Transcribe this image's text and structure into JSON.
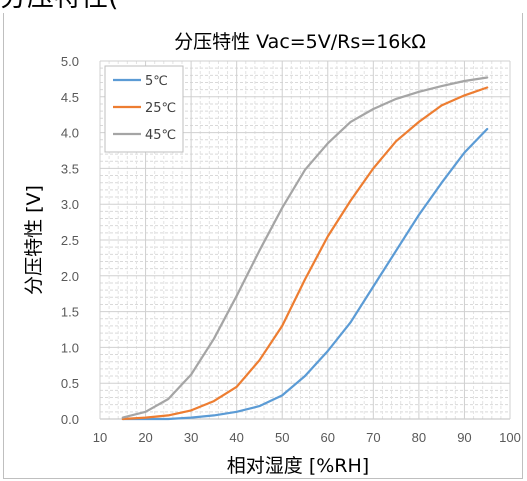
{
  "page_heading": "分压特性(",
  "chart_data": {
    "type": "line",
    "title": "分压特性  Vac=5V/Rs=16kΩ",
    "xlabel": "相对湿度 [%RH]",
    "ylabel": "分压特性 [V]",
    "xlim": [
      10,
      100
    ],
    "ylim": [
      0,
      5
    ],
    "x_ticks": [
      10,
      20,
      30,
      40,
      50,
      60,
      70,
      80,
      90,
      100
    ],
    "y_ticks": [
      "0.0",
      "0.5",
      "1.0",
      "1.5",
      "2.0",
      "2.5",
      "3.0",
      "3.5",
      "4.0",
      "4.5",
      "5.0"
    ],
    "grid": true,
    "legend_position": "top-left",
    "x": [
      15,
      20,
      25,
      30,
      35,
      40,
      45,
      50,
      55,
      60,
      65,
      70,
      75,
      80,
      85,
      90,
      95
    ],
    "series": [
      {
        "name": "5℃",
        "color": "#5b9bd5",
        "values": [
          0.0,
          0.0,
          0.0,
          0.02,
          0.05,
          0.1,
          0.18,
          0.33,
          0.6,
          0.95,
          1.35,
          1.85,
          2.35,
          2.85,
          3.3,
          3.72,
          4.05
        ]
      },
      {
        "name": "25℃",
        "color": "#ed7d31",
        "values": [
          0.0,
          0.02,
          0.05,
          0.12,
          0.25,
          0.45,
          0.82,
          1.3,
          1.95,
          2.55,
          3.05,
          3.5,
          3.88,
          4.15,
          4.38,
          4.52,
          4.63
        ]
      },
      {
        "name": "45℃",
        "color": "#a5a5a5",
        "values": [
          0.02,
          0.1,
          0.28,
          0.62,
          1.12,
          1.72,
          2.35,
          2.95,
          3.48,
          3.85,
          4.15,
          4.33,
          4.47,
          4.57,
          4.65,
          4.72,
          4.77
        ]
      }
    ]
  }
}
